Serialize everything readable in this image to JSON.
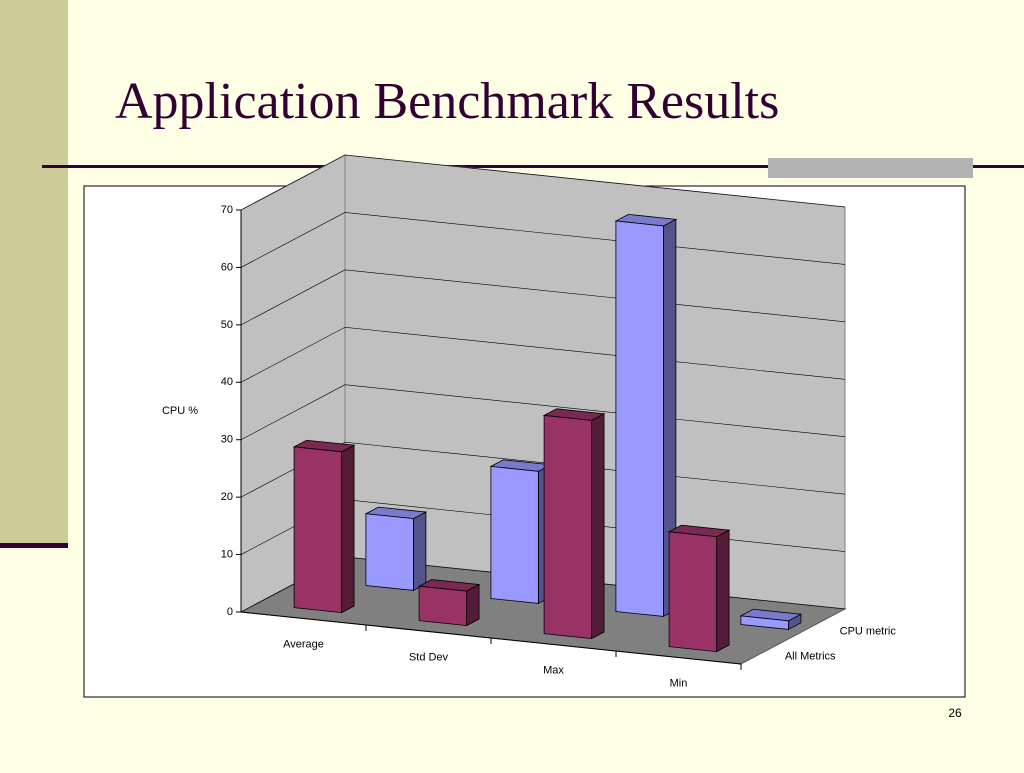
{
  "slide": {
    "title": "Application Benchmark Results",
    "page_number": "26"
  },
  "chart_data": {
    "type": "bar3d",
    "y_label": "CPU %",
    "categories": [
      "Average",
      "Std Dev",
      "Max",
      "Min"
    ],
    "series": [
      {
        "name": "All Metrics",
        "color": "#993366",
        "values": [
          28,
          6,
          38,
          20
        ]
      },
      {
        "name": "CPU metric",
        "color": "#9999ff",
        "values": [
          12.5,
          23,
          68,
          1.5
        ]
      }
    ],
    "ylim": [
      0,
      70
    ],
    "yticks": [
      0,
      10,
      20,
      30,
      40,
      50,
      60,
      70
    ],
    "grid": true
  }
}
